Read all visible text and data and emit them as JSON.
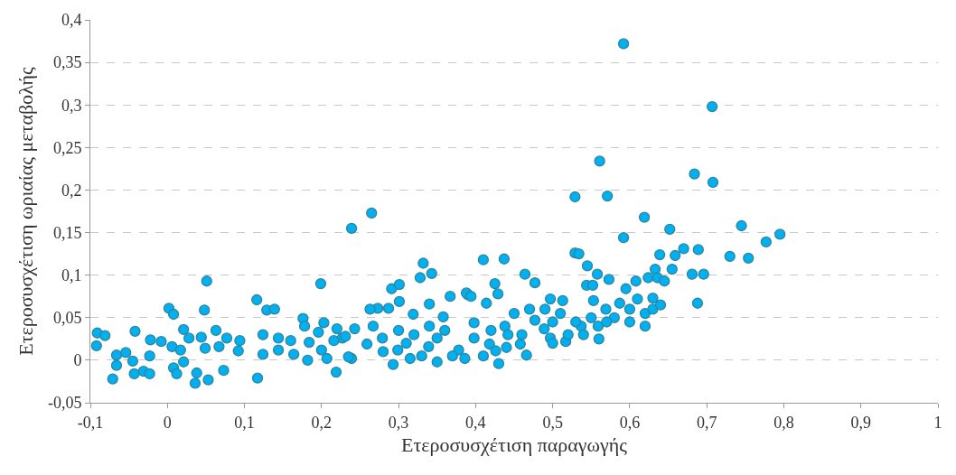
{
  "chart_data": {
    "type": "scatter",
    "xlabel": "Ετεροσυσχέτιση παραγωγής",
    "ylabel": "Ετεροσυσχέτιση ωριαίας μεταβολής",
    "xlim": [
      -0.1,
      1
    ],
    "ylim": [
      -0.05,
      0.4
    ],
    "xticks": [
      {
        "value": -0.1,
        "label": "-0,1"
      },
      0,
      {
        "value": 0.1,
        "label": "0,1"
      },
      {
        "value": 0.2,
        "label": "0,2"
      },
      {
        "value": 0.3,
        "label": "0,3"
      },
      {
        "value": 0.4,
        "label": "0,4"
      },
      {
        "value": 0.5,
        "label": "0,5"
      },
      {
        "value": 0.6,
        "label": "0,6"
      },
      {
        "value": 0.7,
        "label": "0,7"
      },
      {
        "value": 0.8,
        "label": "0,8"
      },
      {
        "value": 0.9,
        "label": "0,9"
      },
      1
    ],
    "yticks": [
      {
        "value": -0.05,
        "label": "-0,05"
      },
      0,
      {
        "value": 0.05,
        "label": "0,05"
      },
      {
        "value": 0.1,
        "label": "0,1"
      },
      {
        "value": 0.15,
        "label": "0,15"
      },
      {
        "value": 0.2,
        "label": "0,2"
      },
      {
        "value": 0.25,
        "label": "0,25"
      },
      {
        "value": 0.3,
        "label": "0,3"
      },
      {
        "value": 0.35,
        "label": "0,35"
      },
      {
        "value": 0.4,
        "label": "0,4"
      }
    ],
    "grid": "y",
    "marker": "circle",
    "series": [
      {
        "color": "#00b0f0",
        "x": [
          0.592,
          0.707,
          0.561,
          0.684,
          0.708,
          0.529,
          0.571,
          0.619,
          0.652,
          0.592,
          0.745,
          0.795,
          0.777,
          0.73,
          0.754,
          0.689,
          0.67,
          0.659,
          0.639,
          0.529,
          0.534,
          0.41,
          0.437,
          0.655,
          0.633,
          0.681,
          0.696,
          0.688,
          0.545,
          0.558,
          0.573,
          0.544,
          0.552,
          0.595,
          0.608,
          0.624,
          0.636,
          0.645,
          0.464,
          0.425,
          0.477,
          0.343,
          0.367,
          0.39,
          0.429,
          0.587,
          0.63,
          0.553,
          0.61,
          0.497,
          0.513,
          0.239,
          0.265,
          0.332,
          0.328,
          0.291,
          0.301,
          0.273,
          0.287,
          0.301,
          0.34,
          0.388,
          0.394,
          0.414,
          0.569,
          0.267,
          0.243,
          0.227,
          0.219,
          0.293,
          0.43,
          0.466,
          0.517,
          0.559,
          0.319,
          0.358,
          0.398,
          0.438,
          0.477,
          0.259,
          0.299,
          0.339,
          0.378,
          0.418,
          0.458,
          0.497,
          0.239,
          0.315,
          0.386,
          0.426,
          0.537,
          0.279,
          0.35,
          0.398,
          0.442,
          0.489,
          -0.091,
          -0.081,
          -0.092,
          -0.066,
          -0.054,
          -0.066,
          -0.071,
          -0.045,
          -0.042,
          -0.043,
          -0.031,
          -0.023,
          -0.022,
          -0.023,
          -0.008,
          0.002,
          0.008,
          0.006,
          0.017,
          0.021,
          0.028,
          0.021,
          0.008,
          0.012,
          0.038,
          0.036,
          0.053,
          0.073,
          0.051,
          0.048,
          0.044,
          0.063,
          0.067,
          0.077,
          0.049,
          0.094,
          0.092,
          0.116,
          0.117,
          0.124,
          0.129,
          0.139,
          0.124,
          0.144,
          0.144,
          0.16,
          0.176,
          0.178,
          0.164,
          0.184,
          0.182,
          0.199,
          0.196,
          0.203,
          0.2,
          0.216,
          0.207,
          0.231,
          0.235,
          0.263,
          0.22,
          0.58,
          0.6,
          0.62,
          0.62,
          0.63,
          0.64,
          0.6,
          0.57,
          0.55,
          0.54,
          0.52,
          0.5,
          0.53,
          0.51,
          0.49,
          0.47,
          0.45,
          0.46,
          0.44,
          0.42,
          0.36,
          0.34,
          0.32,
          0.3,
          0.31,
          0.28,
          0.33,
          0.37,
          0.41,
          0.35,
          0.5,
          0.56
        ],
        "values": [
          0.372,
          0.298,
          0.234,
          0.219,
          0.209,
          0.192,
          0.193,
          0.168,
          0.154,
          0.144,
          0.158,
          0.148,
          0.139,
          0.122,
          0.12,
          0.13,
          0.131,
          0.123,
          0.124,
          0.126,
          0.125,
          0.118,
          0.119,
          0.107,
          0.107,
          0.101,
          0.101,
          0.067,
          0.111,
          0.101,
          0.095,
          0.088,
          0.088,
          0.084,
          0.093,
          0.097,
          0.097,
          0.093,
          0.101,
          0.09,
          0.091,
          0.102,
          0.075,
          0.077,
          0.078,
          0.067,
          0.073,
          0.07,
          0.072,
          0.072,
          0.07,
          0.155,
          0.173,
          0.114,
          0.097,
          0.084,
          0.089,
          0.061,
          0.061,
          0.069,
          0.066,
          0.079,
          0.075,
          0.067,
          0.06,
          0.04,
          0.037,
          0.026,
          -0.014,
          -0.005,
          -0.004,
          0.006,
          0.022,
          0.04,
          0.054,
          0.051,
          0.044,
          0.04,
          0.047,
          0.019,
          0.012,
          0.016,
          0.012,
          0.019,
          0.019,
          0.026,
          0.002,
          0.002,
          0.002,
          0.011,
          0.04,
          0.026,
          0.026,
          0.026,
          0.03,
          0.037,
          0.032,
          0.029,
          0.017,
          0.006,
          0.009,
          -0.006,
          -0.022,
          -0.001,
          0.034,
          -0.016,
          -0.013,
          -0.016,
          0.024,
          0.005,
          0.022,
          0.061,
          0.054,
          0.016,
          0.012,
          0.036,
          0.026,
          -0.002,
          -0.009,
          -0.016,
          -0.015,
          -0.027,
          -0.023,
          -0.012,
          0.093,
          0.059,
          0.027,
          0.035,
          0.016,
          0.026,
          0.014,
          0.023,
          0.011,
          0.071,
          -0.021,
          0.03,
          0.059,
          0.06,
          0.007,
          0.026,
          0.012,
          0.023,
          0.049,
          0.04,
          0.007,
          0.021,
          0.0,
          0.09,
          0.033,
          0.044,
          0.012,
          0.023,
          0.002,
          0.028,
          0.004,
          0.06,
          0.037,
          0.05,
          0.045,
          0.04,
          0.055,
          0.06,
          0.065,
          0.06,
          0.045,
          0.05,
          0.03,
          0.03,
          0.02,
          0.045,
          0.055,
          0.06,
          0.06,
          0.055,
          0.03,
          0.015,
          0.035,
          0.035,
          0.04,
          0.03,
          0.035,
          0.02,
          0.01,
          0.005,
          0.005,
          0.005,
          -0.002,
          0.045,
          0.025
        ]
      }
    ]
  }
}
